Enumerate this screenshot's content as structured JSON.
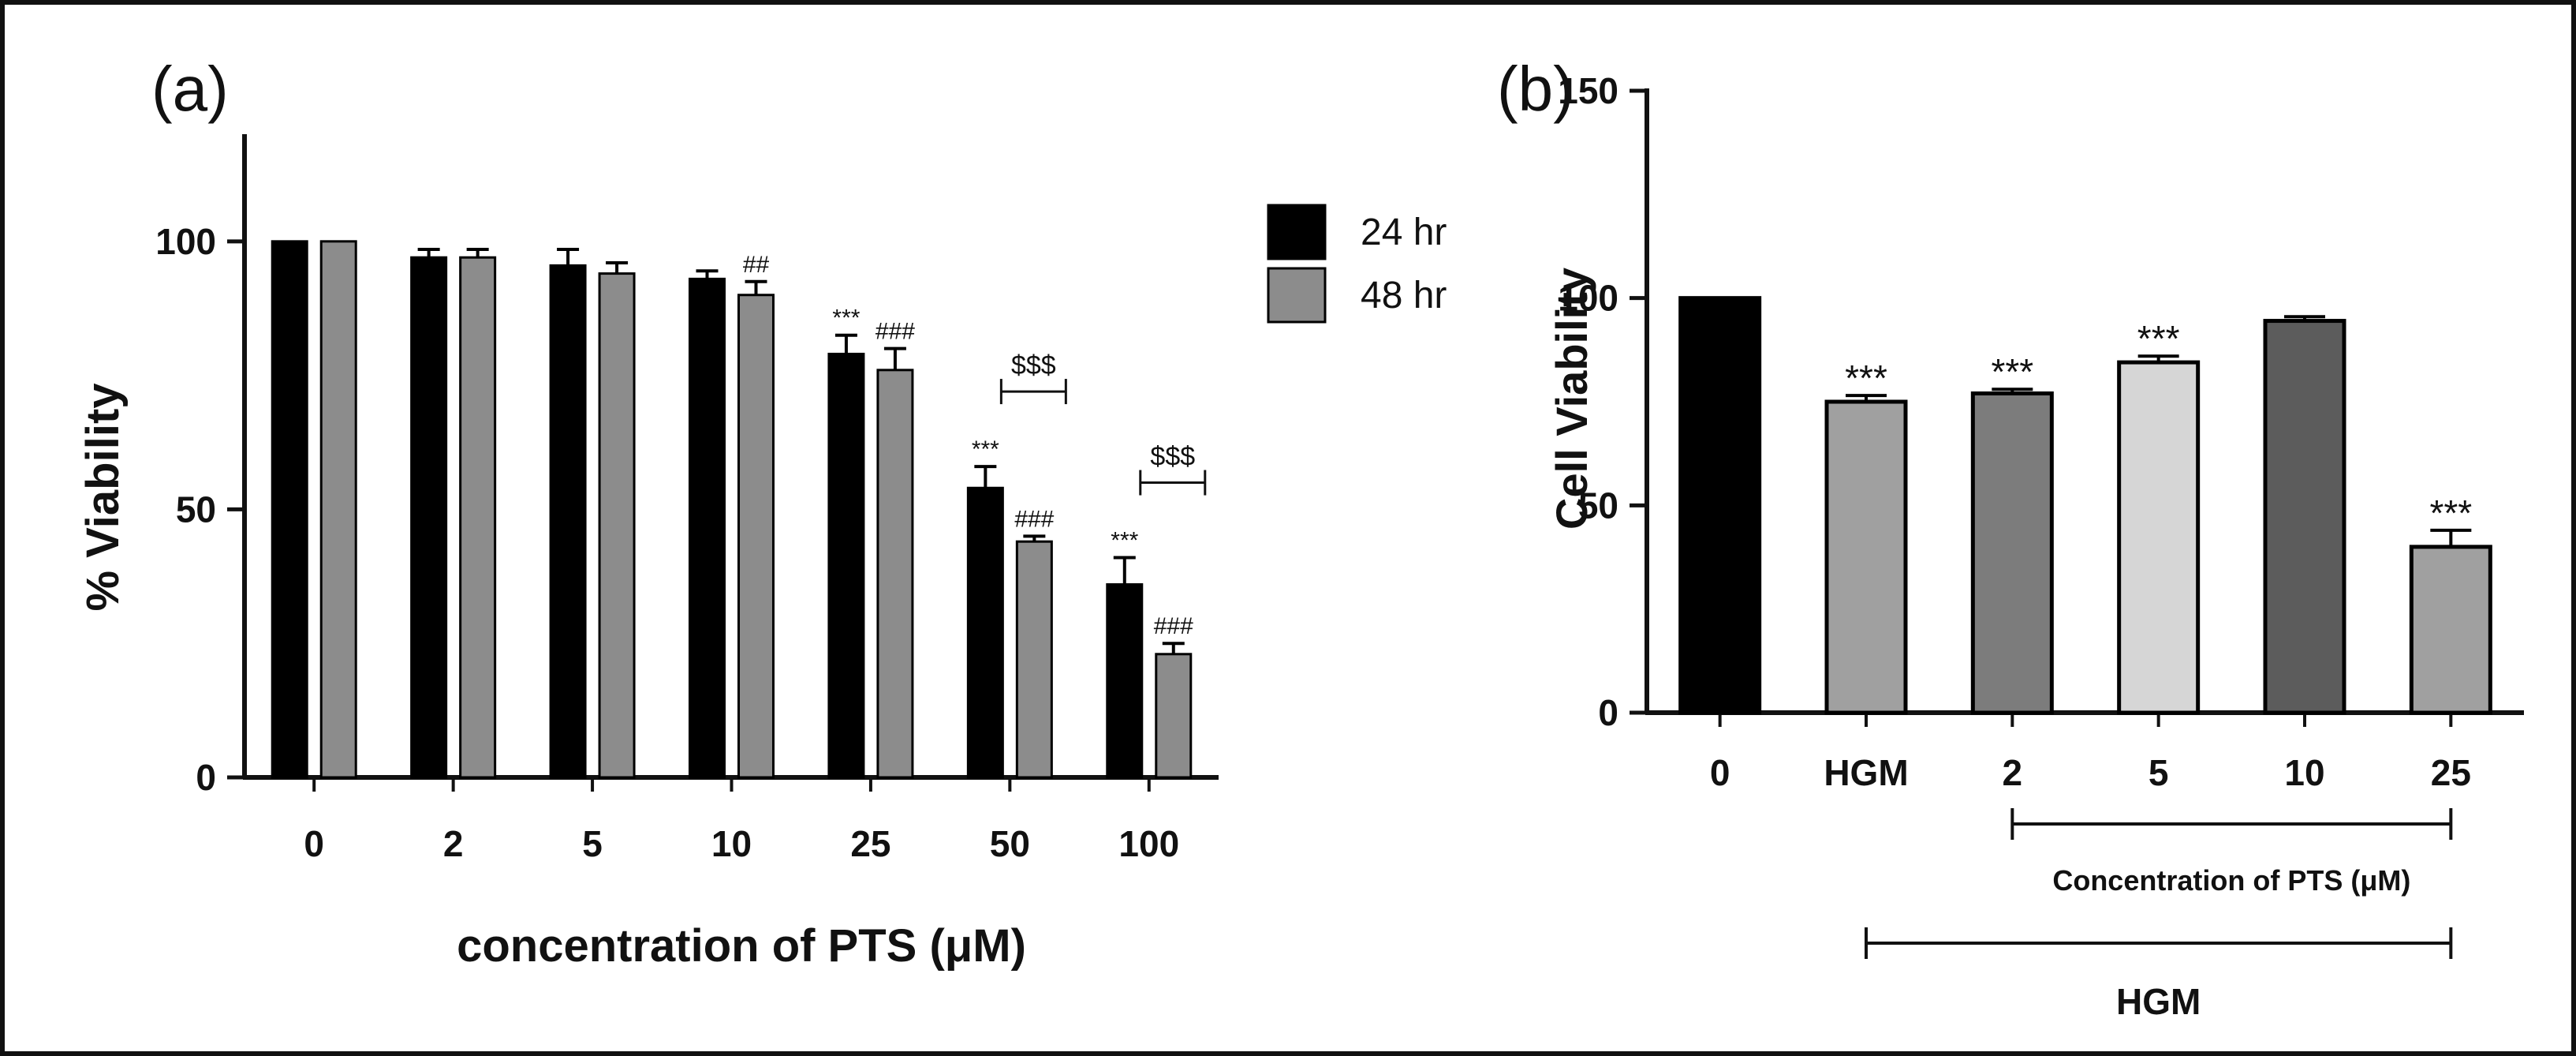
{
  "chart_data": [
    {
      "panel": "(a)",
      "type": "bar",
      "ylabel": "% Viability",
      "xlabel": "concentration of PTS (μM)",
      "categories": [
        "0",
        "2",
        "5",
        "10",
        "25",
        "50",
        "100"
      ],
      "ylim": [
        0,
        120
      ],
      "yticks": [
        0,
        50,
        100
      ],
      "legend_position": "top-right",
      "series": [
        {
          "name": "24 hr",
          "color": "#000000",
          "values": [
            100,
            97,
            95.5,
            93,
            79,
            54,
            36
          ],
          "errors": [
            0,
            1.5,
            3,
            1.5,
            3.5,
            4,
            5
          ]
        },
        {
          "name": "48 hr",
          "color": "#8c8c8c",
          "values": [
            100,
            97,
            94,
            90,
            76,
            44,
            23
          ],
          "errors": [
            0,
            1.5,
            2,
            2.5,
            4,
            1,
            2
          ]
        }
      ],
      "annotations": [
        {
          "category": "10",
          "series": "48 hr",
          "text": "##"
        },
        {
          "category": "25",
          "series": "24 hr",
          "text": "***"
        },
        {
          "category": "25",
          "series": "48 hr",
          "text": "###"
        },
        {
          "category": "50",
          "series": "24 hr",
          "text": "***"
        },
        {
          "category": "50",
          "series": "48 hr",
          "text": "###"
        },
        {
          "category": "100",
          "series": "24 hr",
          "text": "***"
        },
        {
          "category": "100",
          "series": "48 hr",
          "text": "###"
        }
      ],
      "brackets": [
        {
          "category": "50",
          "text": "$$$"
        },
        {
          "category": "100",
          "text": "$$$"
        }
      ]
    },
    {
      "panel": "(b)",
      "type": "bar",
      "ylabel": "Cell Viability",
      "categories": [
        "0",
        "HGM",
        "2",
        "5",
        "10",
        "25"
      ],
      "ylim": [
        0,
        150
      ],
      "yticks": [
        0,
        50,
        100,
        150
      ],
      "values": [
        100,
        75,
        77,
        84.5,
        94.5,
        40
      ],
      "errors": [
        0,
        1.5,
        1,
        1.5,
        1,
        4
      ],
      "colors": [
        "#000000",
        "#a0a0a0",
        "#7c7c7c",
        "#d6d6d6",
        "#5c5c5c",
        "#a0a0a0"
      ],
      "significance": [
        "",
        "***",
        "***",
        "***",
        "",
        "***"
      ],
      "group_labels": [
        {
          "text": "Concentration of PTS (μM)",
          "from": "2",
          "to": "25"
        },
        {
          "text": "HGM",
          "from": "HGM",
          "to": "25"
        }
      ]
    }
  ]
}
